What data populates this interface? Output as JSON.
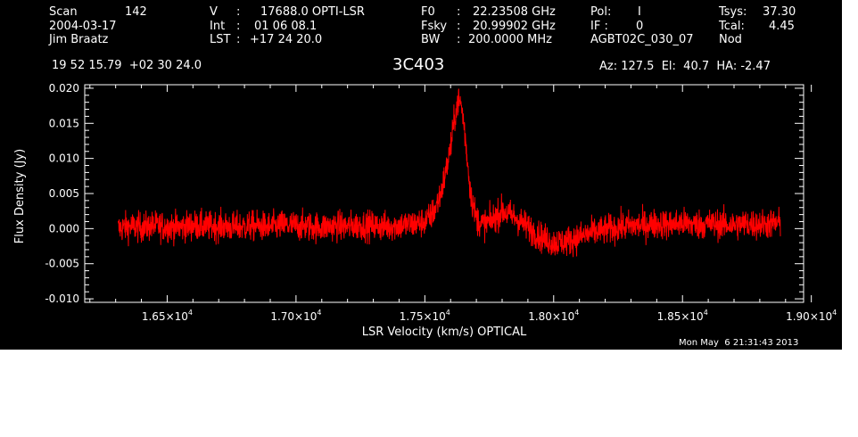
{
  "header": {
    "col1": {
      "scan_label": "Scan",
      "scan_value": "142",
      "date": "2004-03-17",
      "observer": "Jim Braatz"
    },
    "col2": {
      "v_label": "V",
      "v_value": "17688.0 OPTI-LSR",
      "int_label": "Int",
      "int_value": "01 06 08.1",
      "lst_label": "LST",
      "lst_value": "+17 24 20.0"
    },
    "col3": {
      "f0_label": "F0",
      "f0_value": "22.23508 GHz",
      "fsky_label": "Fsky",
      "fsky_value": "20.99902 GHz",
      "bw_label": "BW",
      "bw_value": "200.0000 MHz"
    },
    "col4": {
      "pol_label": "Pol:",
      "pol_value": "I",
      "if_label": "IF :",
      "if_value": "0",
      "project": "AGBT02C_030_07"
    },
    "col5": {
      "tsys_label": "Tsys:",
      "tsys_value": "37.30",
      "tcal_label": "Tcal:",
      "tcal_value": "4.45",
      "mode": "Nod"
    },
    "coords": "19 52 15.79  +02 30 24.0",
    "source": "3C403",
    "azel": "Az: 127.5  El:  40.7  HA: -2.47"
  },
  "footer": {
    "timestamp": "Mon May  6 21:31:43 2013"
  },
  "colors": {
    "background": "#000000",
    "trace": "#ff0000",
    "axes": "#ffffff",
    "page": "#ffffff"
  },
  "chart_data": {
    "type": "line",
    "xlabel": "LSR Velocity (km/s) OPTICAL",
    "ylabel": "Flux Density (Jy)",
    "xlim": [
      16180,
      18970
    ],
    "ylim": [
      -0.0105,
      0.0205
    ],
    "x_ticks": [
      {
        "value": 16500,
        "mantissa": "1.65",
        "exp": "4"
      },
      {
        "value": 17000,
        "mantissa": "1.70",
        "exp": "4"
      },
      {
        "value": 17500,
        "mantissa": "1.75",
        "exp": "4"
      },
      {
        "value": 18000,
        "mantissa": "1.80",
        "exp": "4"
      },
      {
        "value": 18500,
        "mantissa": "1.85",
        "exp": "4"
      },
      {
        "value": 19000,
        "mantissa": "1.90",
        "exp": "4"
      }
    ],
    "y_ticks": [
      {
        "value": 0.02,
        "label": "0.020"
      },
      {
        "value": 0.015,
        "label": "0.015"
      },
      {
        "value": 0.01,
        "label": "0.010"
      },
      {
        "value": 0.005,
        "label": "0.005"
      },
      {
        "value": 0.0,
        "label": "0.000"
      },
      {
        "value": -0.005,
        "label": "-0.005"
      },
      {
        "value": -0.01,
        "label": "-0.010"
      }
    ],
    "series": [
      {
        "x": [
          16310,
          16350,
          16400,
          16450,
          16500,
          16550,
          16600,
          16650,
          16700,
          16750,
          16800,
          16850,
          16900,
          16950,
          17000,
          17050,
          17100,
          17150,
          17200,
          17250,
          17300,
          17350,
          17400,
          17450,
          17480,
          17500,
          17520,
          17540,
          17560,
          17580,
          17600,
          17610,
          17620,
          17630,
          17640,
          17650,
          17660,
          17670,
          17680,
          17700,
          17720,
          17750,
          17800,
          17850,
          17900,
          17950,
          18000,
          18050,
          18100,
          18150,
          18200,
          18250,
          18300,
          18350,
          18400,
          18450,
          18500,
          18550,
          18600,
          18650,
          18700,
          18750,
          18800,
          18850,
          18880
        ],
        "y": [
          0.0,
          0.0003,
          0.0002,
          0.0004,
          0.0003,
          0.0002,
          0.0005,
          0.0003,
          0.0004,
          0.0002,
          0.0003,
          0.0004,
          0.0002,
          0.0005,
          0.0004,
          0.0003,
          0.0002,
          0.0004,
          0.0003,
          0.0005,
          0.0004,
          0.0003,
          0.0005,
          0.0006,
          0.0008,
          0.001,
          0.0016,
          0.0028,
          0.0048,
          0.0078,
          0.0115,
          0.0142,
          0.0168,
          0.0182,
          0.0178,
          0.0155,
          0.0118,
          0.0078,
          0.0045,
          0.0015,
          0.0006,
          0.0009,
          0.0025,
          0.0016,
          0.0002,
          -0.0012,
          -0.002,
          -0.0018,
          -0.0012,
          -0.0006,
          -0.0002,
          0.0002,
          0.0004,
          0.0005,
          0.0007,
          0.0006,
          0.0008,
          0.0006,
          0.0007,
          0.0006,
          0.0005,
          0.0007,
          0.0006,
          0.0007,
          0.0008
        ],
        "noise_rms": 0.0018
      }
    ]
  }
}
